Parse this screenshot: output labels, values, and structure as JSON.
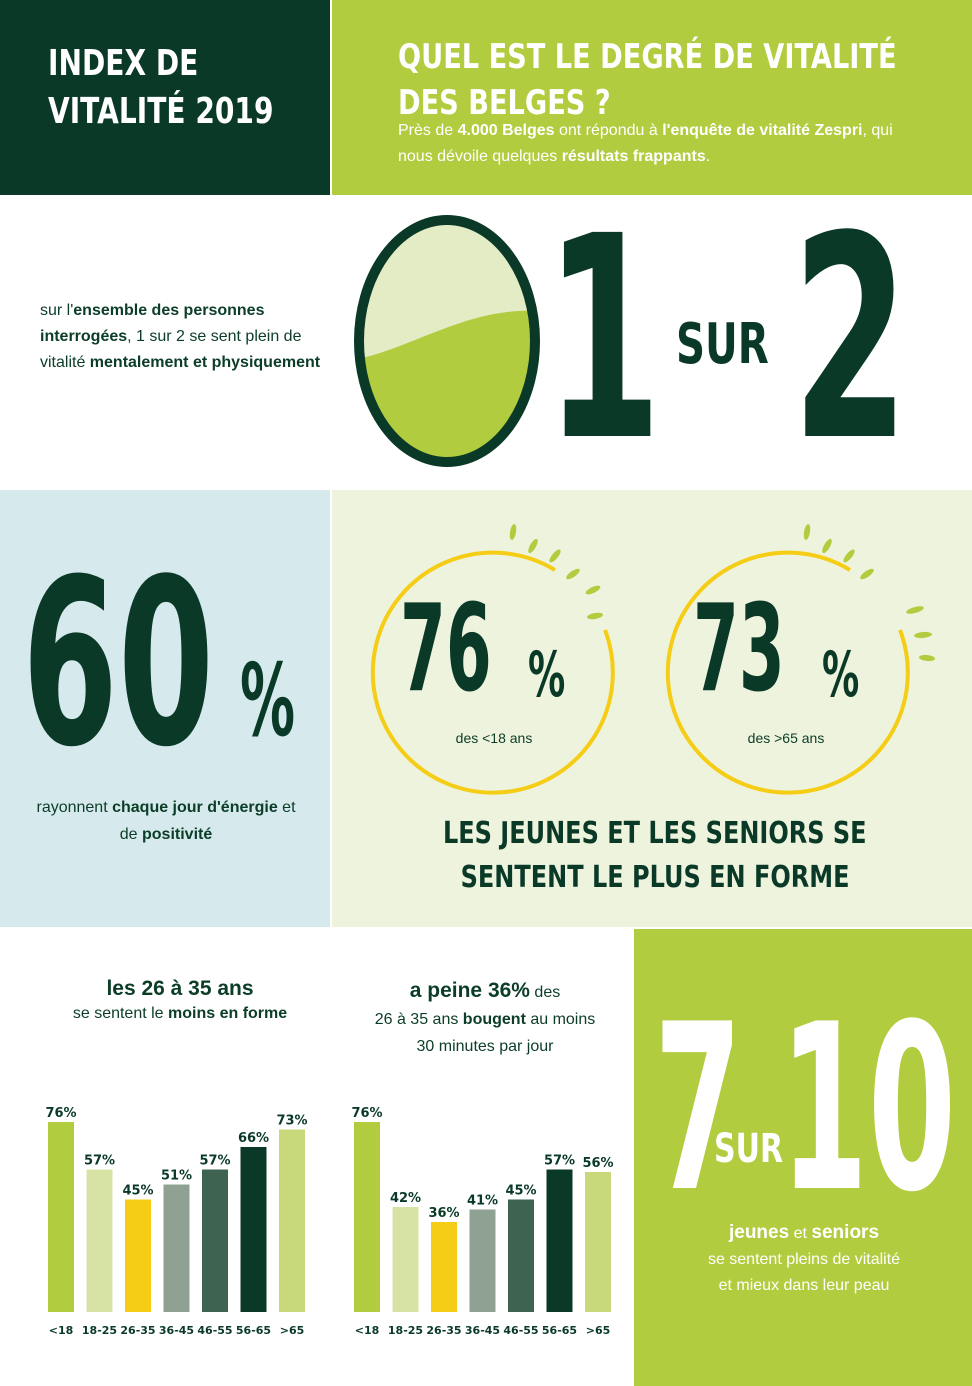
{
  "header": {
    "title_line1": "INDEX DE",
    "title_line2": "VITALITÉ 2019",
    "question_line1": "QUEL EST LE DEGRÉ DE VITALITÉ",
    "question_line2": "DES BELGES ?",
    "intro": {
      "p1": "Près de ",
      "p2": "4.000 Belges",
      "p3": " ont répondu à ",
      "p4": "l'enquête de vitalité Zespri",
      "p5": ", qui nous dévoile quelques ",
      "p6": "résultats frappants",
      "p7": "."
    }
  },
  "section_one_of_two": {
    "text": {
      "p1": "sur l'",
      "p2": "ensemble des personnes interrogées",
      "p3": ", 1 sur 2 se sent plein de vitalité ",
      "p4": "mentalement et physiquement"
    },
    "num_a": "1",
    "sur": "SUR",
    "num_b": "2",
    "fill_fraction": 0.5
  },
  "section_sixty": {
    "number": "60",
    "percent_sign": "%",
    "text": {
      "p1": "rayonnent ",
      "p2": "chaque jour d'énergie",
      "p3": " et de ",
      "p4": "positivité"
    }
  },
  "section_age_groups": {
    "young": {
      "number": "76",
      "percent_sign": "%",
      "label": "des <18 ans"
    },
    "seniors": {
      "number": "73",
      "percent_sign": "%",
      "label": "des >65 ans"
    },
    "headline_line1": "LES JEUNES ET LES SENIORS SE",
    "headline_line2": "SENTENT LE PLUS EN FORME"
  },
  "chart_one_head": {
    "title": "les 26 à 35 ans",
    "sub1": "se sentent le ",
    "sub2": "moins en forme"
  },
  "chart_two_head": {
    "l1a": "a peine 36%",
    "l1b": " des",
    "l2a": "26 à 35 ans ",
    "l2b": "bougent",
    "l2c": " au moins",
    "l3": "30 minutes par jour"
  },
  "section_seven_of_ten": {
    "num_a": "7",
    "sur": "SUR",
    "num_b": "10",
    "p1": "jeunes",
    "p2": " et ",
    "p3": "seniors",
    "line2": "se sentent pleins de vitalité",
    "line3": "et mieux dans leur peau"
  },
  "colors": {
    "dark_green": "#0a3a27",
    "lime": "#b2cc3f",
    "pale_lime": "#d7e3a4",
    "yellow": "#f5cd16",
    "sage": "#8fa193",
    "slate_green": "#3e6351",
    "light_lime": "#c7d97a",
    "light_blue": "#d6eaee",
    "cream_green": "#eef3de"
  },
  "chart_data": [
    {
      "type": "bar",
      "categories": [
        "<18",
        "18-25",
        "26-35",
        "36-45",
        "46-55",
        "56-65",
        ">65"
      ],
      "values": [
        76,
        57,
        45,
        51,
        57,
        66,
        73
      ],
      "labels": [
        "76%",
        "57%",
        "45%",
        "51%",
        "57%",
        "66%",
        "73%"
      ],
      "colors": [
        "#b2cc3f",
        "#d7e3a4",
        "#f5cd16",
        "#8fa193",
        "#3e6351",
        "#0a3a27",
        "#c7d97a"
      ],
      "ylim": [
        0,
        100
      ]
    },
    {
      "type": "bar",
      "categories": [
        "<18",
        "18-25",
        "26-35",
        "36-45",
        "46-55",
        "56-65",
        ">65"
      ],
      "values": [
        76,
        42,
        36,
        41,
        45,
        57,
        56
      ],
      "labels": [
        "76%",
        "42%",
        "36%",
        "41%",
        "45%",
        "57%",
        "56%"
      ],
      "colors": [
        "#b2cc3f",
        "#d7e3a4",
        "#f5cd16",
        "#8fa193",
        "#3e6351",
        "#0a3a27",
        "#c7d97a"
      ],
      "ylim": [
        0,
        100
      ]
    }
  ]
}
